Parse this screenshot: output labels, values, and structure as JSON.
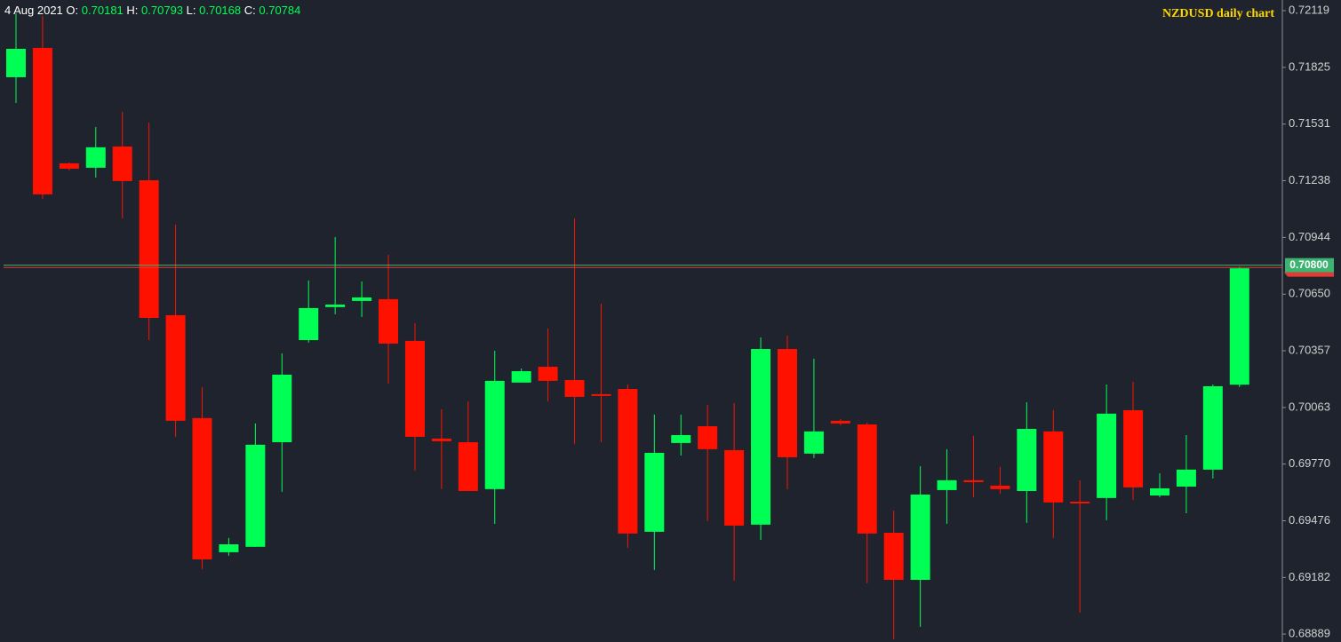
{
  "chart_data": {
    "type": "candlestick",
    "title": "NZDUSD daily chart",
    "info": {
      "date": "4 Aug 2021",
      "fields": [
        {
          "label": "O:",
          "value": 0.70181
        },
        {
          "label": "H:",
          "value": 0.70793
        },
        {
          "label": "L:",
          "value": 0.70168
        },
        {
          "label": "C:",
          "value": 0.70784
        }
      ]
    },
    "up_color": "#00ff55",
    "down_color": "#ff1100",
    "open": [
      0.71774,
      0.71926,
      0.71328,
      0.71305,
      0.71415,
      0.7124,
      0.70541,
      0.70008,
      0.69313,
      0.69341,
      0.69883,
      0.70412,
      0.70583,
      0.70615,
      0.70624,
      0.70408,
      0.69902,
      0.69883,
      0.6964,
      0.70192,
      0.70274,
      0.70205,
      0.70132,
      0.70159,
      0.69419,
      0.69879,
      0.69966,
      0.69842,
      0.69456,
      0.70366,
      0.69824,
      0.69994,
      0.69975,
      0.69414,
      0.6917,
      0.69635,
      0.69686,
      0.69658,
      0.6963,
      0.69939,
      0.69575,
      0.69594,
      0.70049,
      0.69607,
      0.69653,
      0.69741,
      0.70181
    ],
    "high": [
      0.72105,
      0.72091,
      0.71332,
      0.71516,
      0.71595,
      0.71539,
      0.7101,
      0.70169,
      0.69387,
      0.6998,
      0.70343,
      0.70721,
      0.70946,
      0.70716,
      0.70854,
      0.705,
      0.70054,
      0.70095,
      0.70357,
      0.70265,
      0.70472,
      0.71043,
      0.70601,
      0.70182,
      0.70026,
      0.70026,
      0.70077,
      0.70086,
      0.70426,
      0.70435,
      0.70316,
      0.70003,
      0.69985,
      0.69529,
      0.69759,
      0.69847,
      0.69916,
      0.69755,
      0.7009,
      0.70049,
      0.69686,
      0.70182,
      0.70196,
      0.69722,
      0.6992,
      0.70182,
      0.70793
    ],
    "low": [
      0.71641,
      0.71144,
      0.71291,
      0.71254,
      0.71043,
      0.70412,
      0.69911,
      0.69226,
      0.69295,
      0.69341,
      0.69626,
      0.70399,
      0.70546,
      0.70532,
      0.70187,
      0.69736,
      0.6964,
      0.6963,
      0.6946,
      0.70192,
      0.70095,
      0.69874,
      0.69883,
      0.69336,
      0.69221,
      0.69814,
      0.69474,
      0.69166,
      0.69377,
      0.6964,
      0.69801,
      0.69971,
      0.69152,
      0.68862,
      0.68927,
      0.6946,
      0.69598,
      0.69617,
      0.69465,
      0.69387,
      0.69,
      0.69479,
      0.69584,
      0.69598,
      0.69515,
      0.69695,
      0.70168
    ],
    "close": [
      0.71921,
      0.71167,
      0.713,
      0.71411,
      0.71236,
      0.70527,
      0.69994,
      0.69276,
      0.69354,
      0.6987,
      0.70233,
      0.70578,
      0.70596,
      0.70633,
      0.70394,
      0.69911,
      0.69888,
      0.6963,
      0.70201,
      0.70251,
      0.70201,
      0.70118,
      0.70123,
      0.6941,
      0.69828,
      0.6992,
      0.69847,
      0.69451,
      0.70366,
      0.69805,
      0.69939,
      0.6998,
      0.6941,
      0.6917,
      0.69612,
      0.69686,
      0.69676,
      0.6964,
      0.69952,
      0.69571,
      0.69566,
      0.70031,
      0.69649,
      0.69644,
      0.69741,
      0.70173,
      0.70784
    ],
    "ylim": [
      0.68848,
      0.72174
    ],
    "yticks": [
      0.72119,
      0.71825,
      0.71531,
      0.71238,
      0.70944,
      {
        "value": 0.7065,
        "label": "0.70650"
      },
      0.70357,
      0.70063,
      {
        "value": 0.6977,
        "label": "0.69770"
      },
      0.69476,
      0.69182,
      0.68889
    ],
    "price_lines": [
      {
        "value": 0.708,
        "label": "0.70800",
        "color": "#3cb371"
      },
      {
        "value": 0.70788,
        "color": "#e53935"
      }
    ]
  }
}
